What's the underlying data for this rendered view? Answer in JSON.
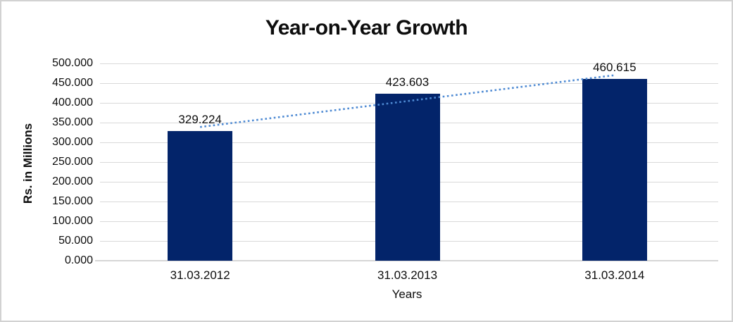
{
  "chart_data": {
    "type": "bar",
    "title": "Year-on-Year Growth",
    "categories": [
      "31.03.2012",
      "31.03.2013",
      "31.03.2014"
    ],
    "values": [
      329.224,
      423.603,
      460.615
    ],
    "data_labels": [
      "329.224",
      "423.603",
      "460.615"
    ],
    "xlabel": "Years",
    "ylabel": "Rs. in Millions",
    "ylim": [
      0,
      500
    ],
    "ytick_step": 50,
    "ytick_labels": [
      "0.000",
      "50.000",
      "100.000",
      "150.000",
      "200.000",
      "250.000",
      "300.000",
      "350.000",
      "400.000",
      "450.000",
      "500.000"
    ],
    "grid": "horizontal",
    "legend": "none",
    "trendline": {
      "type": "linear",
      "style": "dotted"
    },
    "colors": {
      "bar": "#03246A",
      "trendline": "#4E8AD3",
      "gridline": "#D9D9D9",
      "axis_line": "#D6D6D6",
      "text": "#0D0D0D",
      "background": "#FFFFFF",
      "frame_border": "#D2D2D2"
    }
  }
}
